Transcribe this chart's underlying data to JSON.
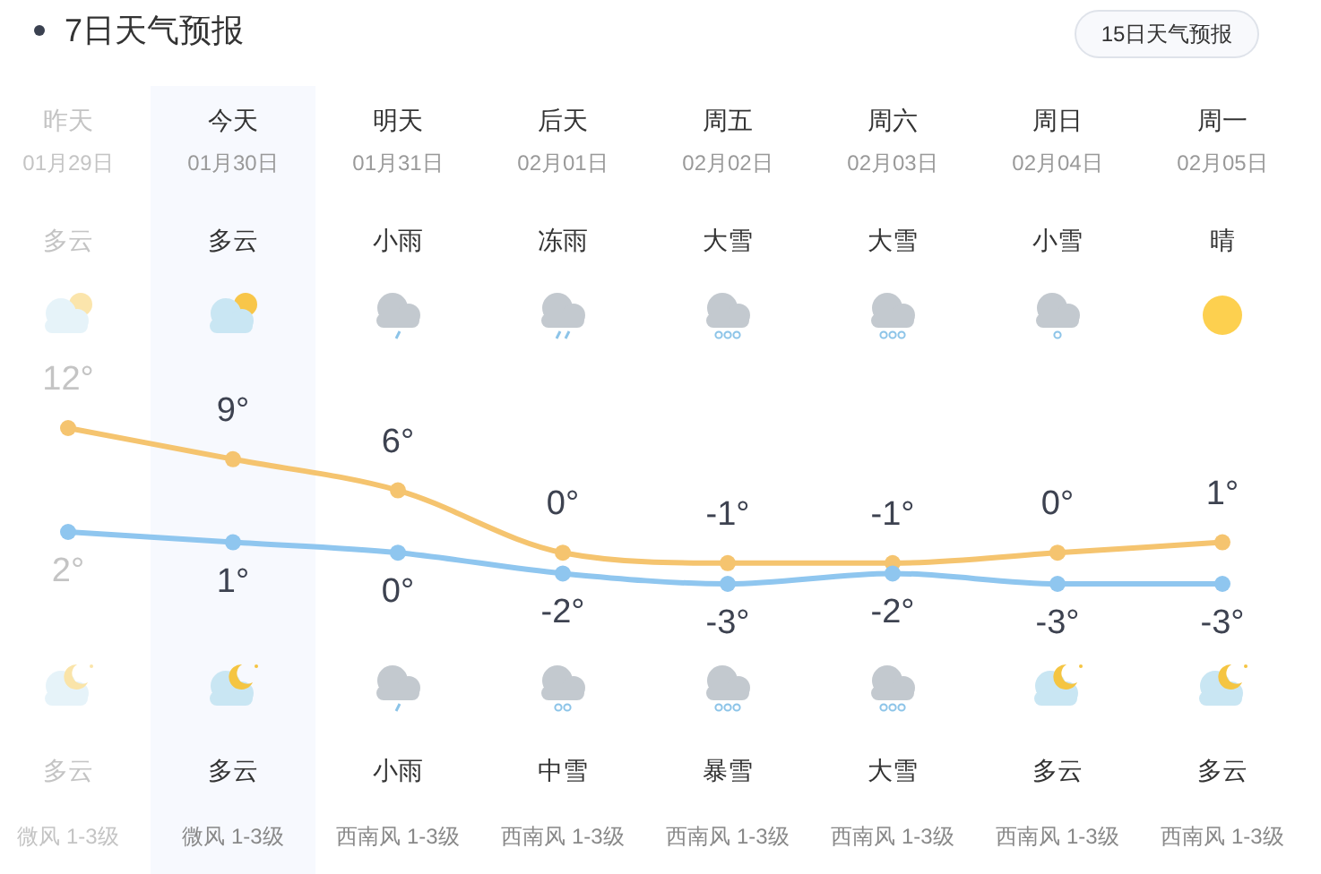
{
  "chart_data": {
    "type": "line",
    "title": "7日天气预报",
    "categories": [
      "昨天",
      "今天",
      "明天",
      "后天",
      "周五",
      "周六",
      "周日",
      "周一"
    ],
    "series": [
      {
        "color": "#f5c46f",
        "values": [
          12,
          9,
          6,
          0,
          -1,
          -1,
          0,
          1
        ],
        "value_labels": [
          "12°",
          "9°",
          "6°",
          "0°",
          "-1°",
          "-1°",
          "0°",
          "1°"
        ]
      },
      {
        "color": "#8fc6ef",
        "values": [
          2,
          1,
          0,
          -2,
          -3,
          -2,
          -3,
          -3
        ],
        "value_labels": [
          "2°",
          "1°",
          "0°",
          "-2°",
          "-3°",
          "-2°",
          "-3°",
          "-3°"
        ]
      }
    ],
    "marker": "circle",
    "line_style": "solid",
    "bands": [
      {
        "axis": "x",
        "from": "今天",
        "to": "今天",
        "color": "#f7f9fe"
      }
    ],
    "annotations": [
      "15日天气预报",
      "01月29日",
      "01月30日",
      "01月31日",
      "02月01日",
      "02月02日",
      "02月03日",
      "02月04日",
      "02月05日",
      "多云",
      "多云",
      "小雨",
      "冻雨",
      "大雪",
      "大雪",
      "小雪",
      "晴",
      "多云",
      "多云",
      "小雨",
      "中雪",
      "暴雪",
      "大雪",
      "多云",
      "多云",
      "微风 1-3级",
      "微风 1-3级",
      "西南风 1-3级",
      "西南风 1-3级",
      "西南风 1-3级",
      "西南风 1-3级",
      "西南风 1-3级",
      "西南风 1-3级"
    ]
  }
}
